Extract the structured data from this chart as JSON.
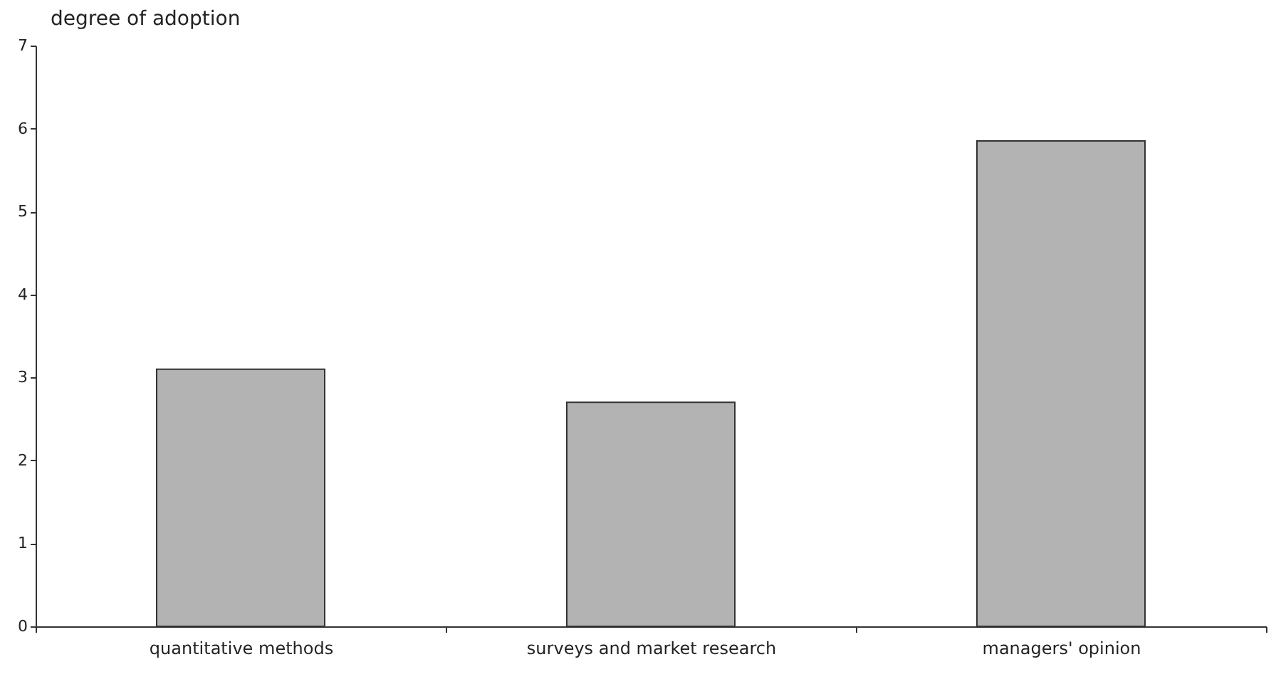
{
  "chart_data": {
    "type": "bar",
    "ylabel": "degree of adoption",
    "categories": [
      "quantitative methods",
      "surveys and market research",
      "managers' opinion"
    ],
    "values": [
      3.1,
      2.7,
      5.85
    ],
    "color": "#b3b3b3",
    "ylim": [
      0,
      7
    ],
    "yticks": [
      0,
      1,
      2,
      3,
      4,
      5,
      6,
      7
    ],
    "grid": false
  }
}
